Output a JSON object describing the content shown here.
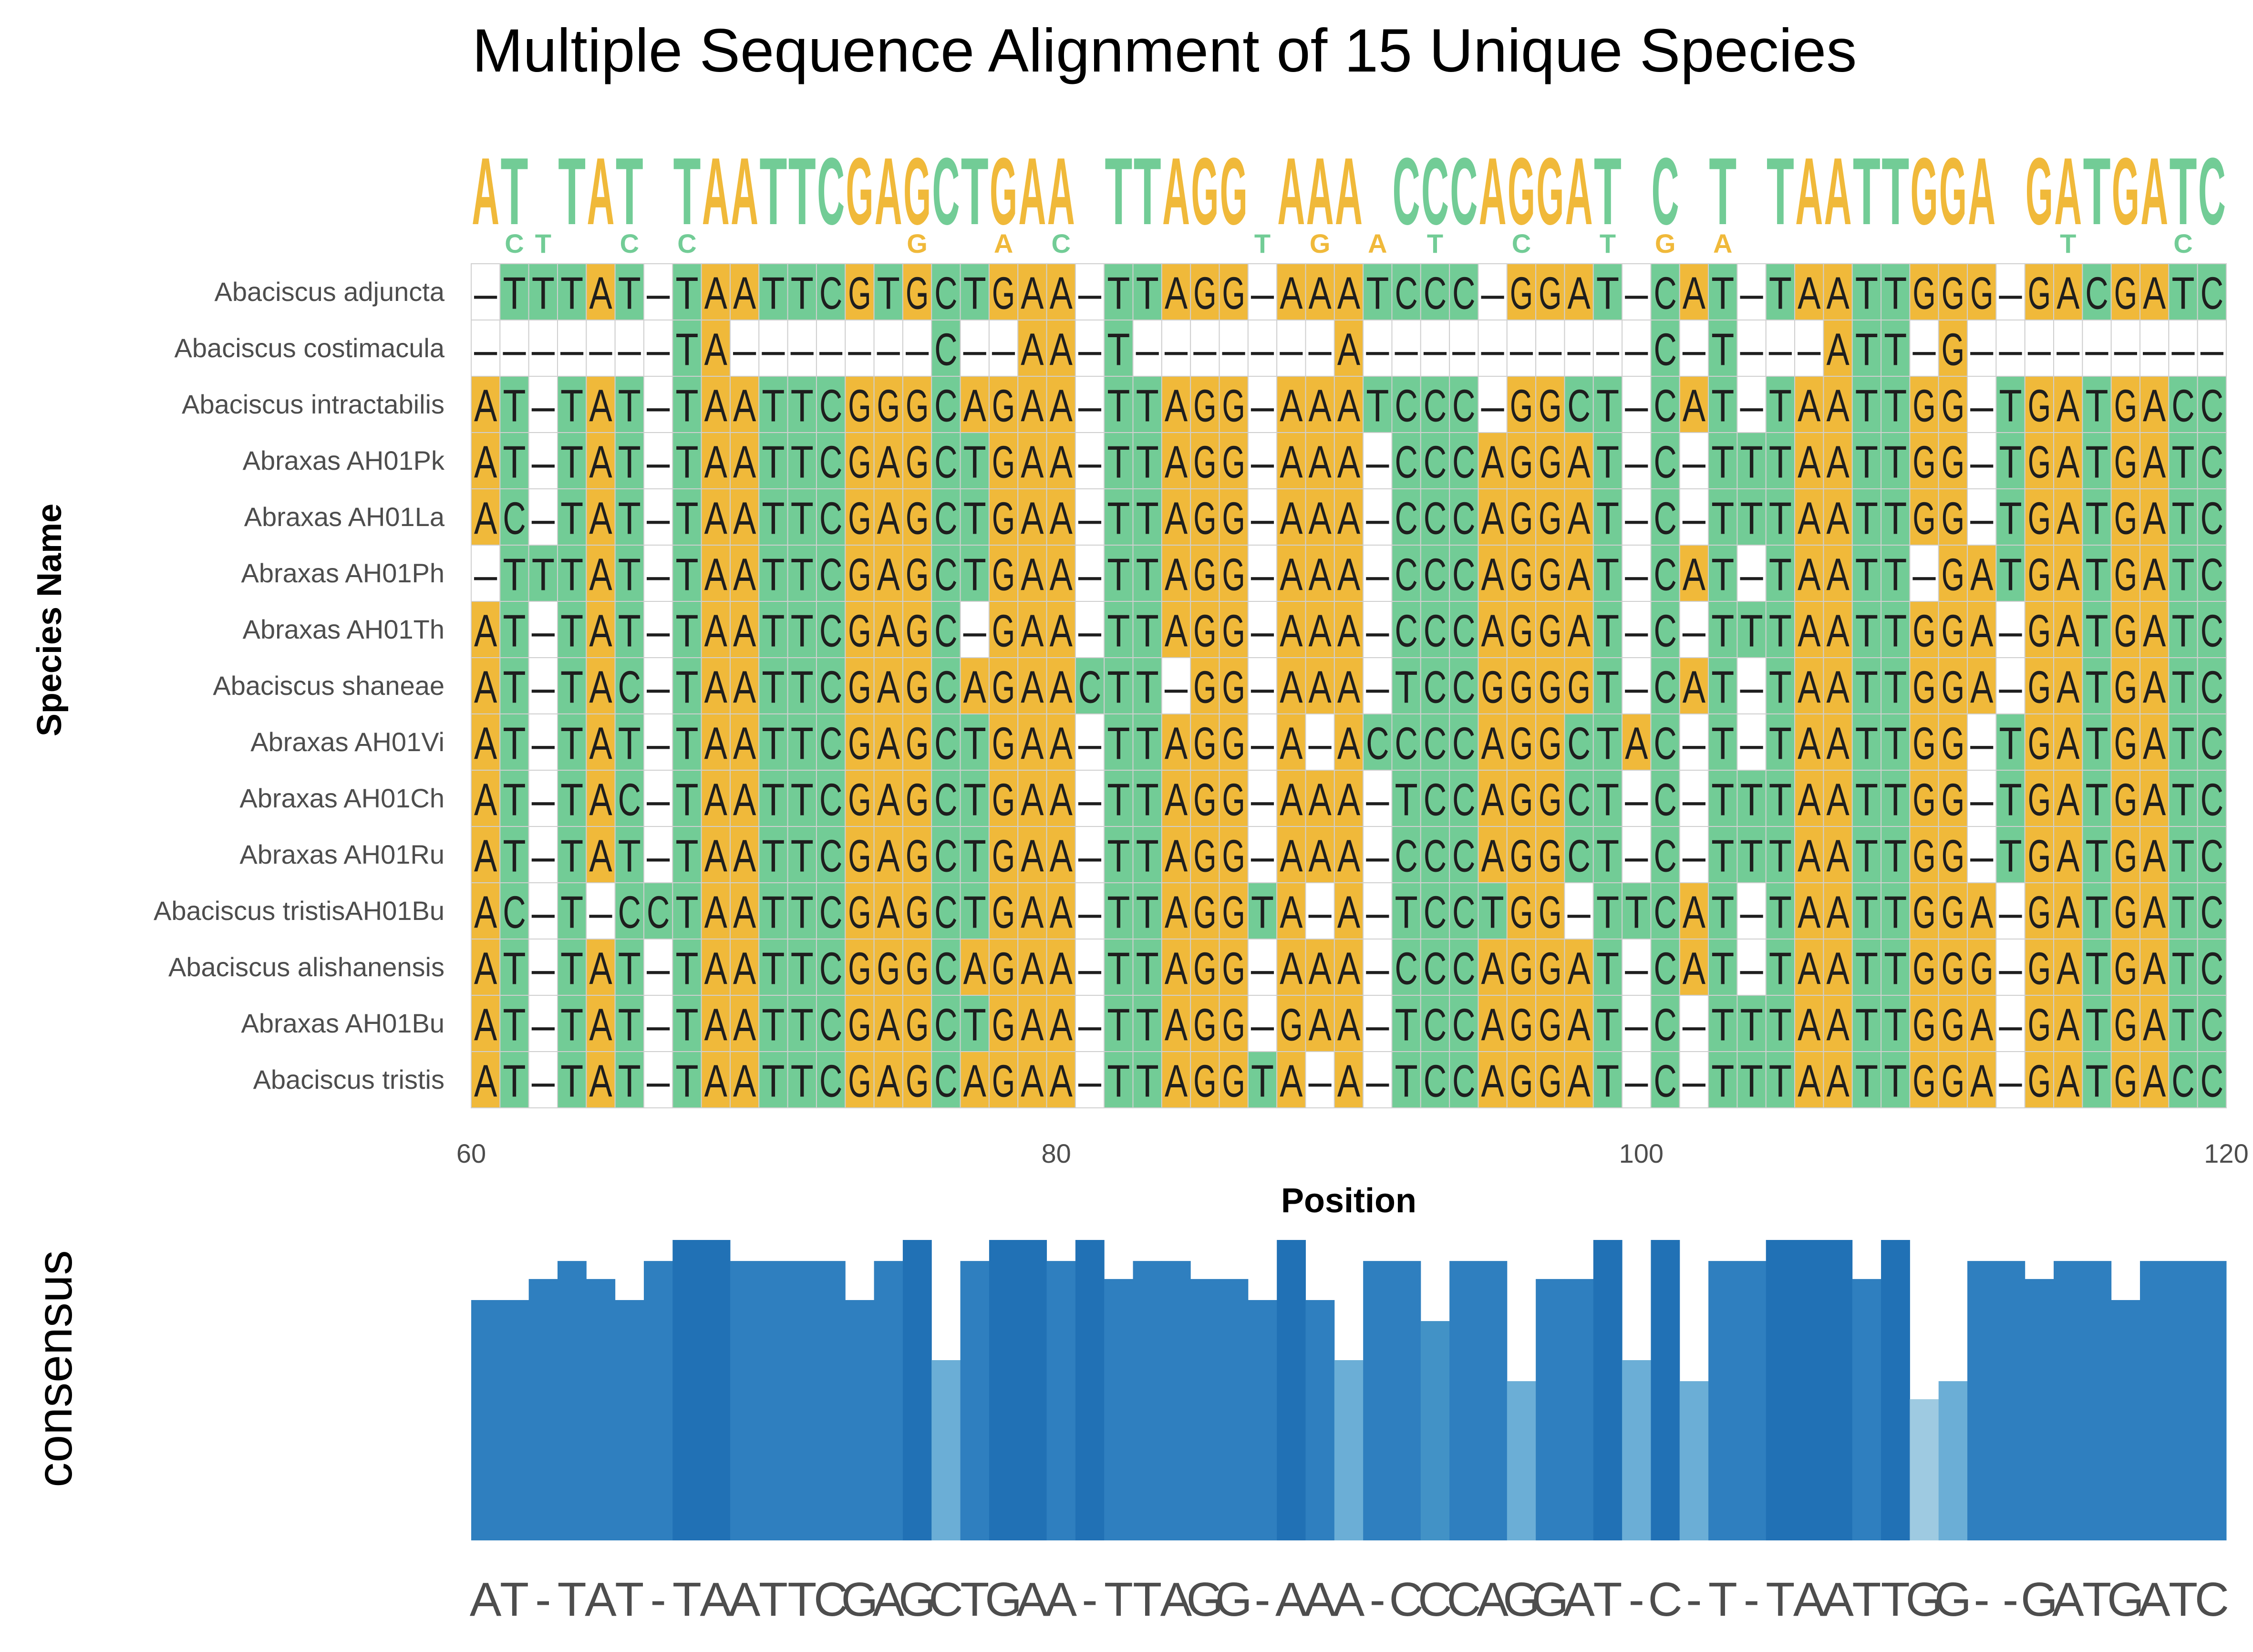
{
  "chart_data": {
    "type": "heatmap",
    "title": "Multiple Sequence Alignment of 15 Unique Species",
    "ylabel": "Species Name",
    "xlabel": "Position",
    "x_ticks": [
      "60",
      "80",
      "100",
      "120"
    ],
    "x_range": [
      60,
      120
    ],
    "start_position": 60,
    "colors": {
      "A": "#f0b93a",
      "G": "#f0b93a",
      "T": "#72cc96",
      "C": "#72cc96",
      "-": "#ffffff"
    },
    "species": [
      {
        "name": "Abaciscus adjuncta",
        "seq": "-TTTAT-TAATTCGTGCTGAA-TTAGG-AAATCCC-GGAT-CAT-TAATTGGG-GACGATC"
      },
      {
        "name": "Abaciscus costimacula",
        "seq": "-------TA-------C--AA-T-------A----------C-T---ATT-G---------"
      },
      {
        "name": "Abaciscus intractabilis",
        "seq": "AT-TAT-TAATTCGGGCAGAA-TTAGG-AAATCCC-GGCT-CAT-TAATTGG-TGATGACC"
      },
      {
        "name": "Abraxas AH01Pk",
        "seq": "AT-TAT-TAATTCGAGCTGAA-TTAGG-AAA-CCCAGGAT-C-TTTAATTGG-TGATGATC"
      },
      {
        "name": "Abraxas AH01La",
        "seq": "AC-TAT-TAATTCGAGCTGAA-TTAGG-AAA-CCCAGGAT-C-TTTAATTGG-TGATGATC"
      },
      {
        "name": "Abraxas AH01Ph",
        "seq": "-TTTAT-TAATTCGAGCTGAA-TTAGG-AAA-CCCAGGAT-CAT-TAATT-GATGATGATC"
      },
      {
        "name": "Abraxas AH01Th",
        "seq": "AT-TAT-TAATTCGAGC-GAA-TTAGG-AAA-CCCAGGAT-C-TTTAATTGGA-GATGATC"
      },
      {
        "name": "Abaciscus shaneae",
        "seq": "AT-TAC-TAATTCGAGCAGAACTT-GG-AAA-TCCGGGGT-CAT-TAATTGGA-GATGATC"
      },
      {
        "name": "Abraxas AH01Vi",
        "seq": "AT-TAT-TAATTCGAGCTGAA-TTAGG-A-ACCCCAGGCTAC-T-TAATTGG-TGATGATC"
      },
      {
        "name": "Abraxas AH01Ch",
        "seq": "AT-TAC-TAATTCGAGCTGAA-TTAGG-AAA-TCCAGGCT-C-TTTAATTGG-TGATGATC"
      },
      {
        "name": "Abraxas AH01Ru",
        "seq": "AT-TAT-TAATTCGAGCTGAA-TTAGG-AAA-CCCAGGCT-C-TTTAATTGG-TGATGATC"
      },
      {
        "name": "Abaciscus tristisAH01Bu",
        "seq": "AC-T-CCTAATTCGAGCTGAA-TTAGGTA-A-TCCTGG-TTCAT-TAATTGGA-GATGATC"
      },
      {
        "name": "Abaciscus alishanensis",
        "seq": "AT-TAT-TAATTCGGGCAGAA-TTAGG-AAA-CCCAGGAT-CAT-TAATTGGG-GATGATC"
      },
      {
        "name": "Abraxas AH01Bu",
        "seq": "AT-TAT-TAATTCGAGCTGAA-TTAGG-GAA-TCCAGGAT-C-TTTAATTGGA-GATGATC"
      },
      {
        "name": "Abaciscus tristis",
        "seq": "AT-TAT-TAATTCGAGCAGAA-TTAGGTA-A-TCCAGGAT-C-TTTAATTGGA-GATGACC"
      }
    ],
    "logo_top": "AT-TAT-TAATTCGAGCTGAA-TTAGG-AAA-CCCAGGAT-C-T-TAATTGGA-GATGATC",
    "logo_secondary": "-CT--C-C-------G--A-C------T-G-A-T--C--T-G-A-----------T-I-C-C-",
    "consensus_label": "consensus",
    "consensus_sequence": "AT-TAT-TAATTCGAGCTGAA-TTAGG-AAA-CCCAGGAT-C-T-TAATTGG--GATGATC",
    "consensus_heights": [
      0.8,
      0.8,
      0.87,
      0.93,
      0.87,
      0.8,
      0.93,
      1.0,
      1.0,
      0.93,
      0.93,
      0.93,
      0.93,
      0.8,
      0.93,
      1.0,
      0.6,
      0.93,
      1.0,
      1.0,
      0.93,
      1.0,
      0.87,
      0.93,
      0.93,
      0.87,
      0.87,
      0.8,
      1.0,
      0.8,
      0.6,
      0.93,
      0.93,
      0.73,
      0.93,
      0.93,
      0.53,
      0.87,
      0.87,
      1.0,
      0.6,
      1.0,
      0.53,
      0.93,
      0.93,
      1.0,
      1.0,
      1.0,
      0.87,
      1.0,
      0.47,
      0.53,
      0.93,
      0.93,
      0.87,
      0.93,
      0.93,
      0.8,
      0.93,
      0.93,
      0.93
    ]
  }
}
